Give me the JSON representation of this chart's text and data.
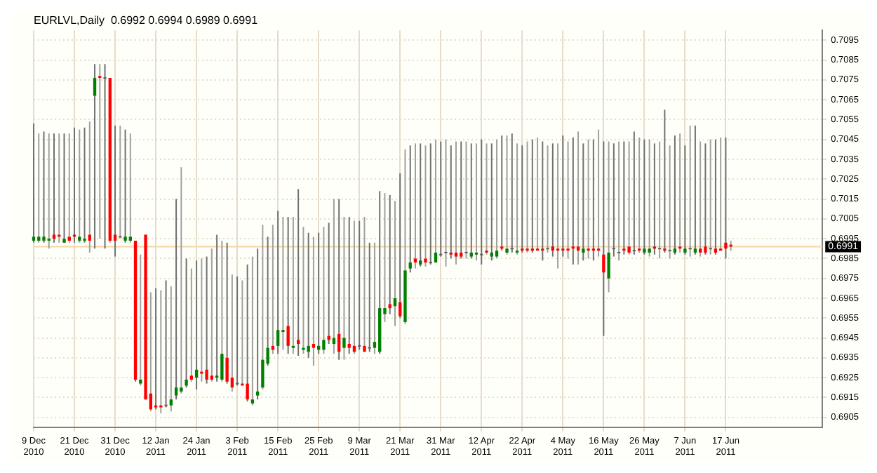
{
  "chart_data": {
    "type": "candlestick",
    "title": "EURLVL,Daily  0.6992 0.6994 0.6989 0.6991",
    "categories": [
      "9 Dec 2010",
      null,
      null,
      null,
      null,
      null,
      null,
      null,
      "21 Dec 2010",
      null,
      null,
      null,
      null,
      null,
      null,
      null,
      "31 Dec 2010",
      null,
      null,
      null,
      null,
      null,
      null,
      null,
      "12 Jan 2011",
      null,
      null,
      null,
      null,
      null,
      null,
      null,
      "24 Jan 2011",
      null,
      null,
      null,
      null,
      null,
      null,
      null,
      "3 Feb 2011",
      null,
      null,
      null,
      null,
      null,
      null,
      null,
      "15 Feb 2011",
      null,
      null,
      null,
      null,
      null,
      null,
      null,
      "25 Feb 2011",
      null,
      null,
      null,
      null,
      null,
      null,
      null,
      "9 Mar 2011",
      null,
      null,
      null,
      null,
      null,
      null,
      null,
      "21 Mar 2011",
      null,
      null,
      null,
      null,
      null,
      null,
      null,
      "31 Mar 2011",
      null,
      null,
      null,
      null,
      null,
      null,
      null,
      "12 Apr 2011",
      null,
      null,
      null,
      null,
      null,
      null,
      null,
      "22 Apr 2011",
      null,
      null,
      null,
      null,
      null,
      null,
      null,
      "4 May 2011",
      null,
      null,
      null,
      null,
      null,
      null,
      null,
      "16 May 2011",
      null,
      null,
      null,
      null,
      null,
      null,
      null,
      "26 May 2011",
      null,
      null,
      null,
      null,
      null,
      null,
      null,
      "7 Jun 2011",
      null,
      null,
      null,
      null,
      null,
      null,
      null,
      "17 Jun 2011",
      null,
      null,
      null,
      null,
      null,
      null,
      null,
      null,
      null,
      null,
      null,
      null,
      null,
      null,
      null,
      null,
      null,
      null,
      null
    ],
    "ohlc": [
      [
        0.6994,
        0.7053,
        0.6993,
        0.6996
      ],
      [
        0.6994,
        0.7048,
        0.6993,
        0.6996
      ],
      [
        0.6994,
        0.7049,
        0.6993,
        0.6996
      ],
      [
        0.6994,
        0.7048,
        0.699,
        0.6995
      ],
      [
        0.6997,
        0.7048,
        0.6993,
        0.6995
      ],
      [
        0.6997,
        0.7048,
        0.6993,
        0.6996
      ],
      [
        0.6993,
        0.7048,
        0.6993,
        0.6995
      ],
      [
        0.6996,
        0.7048,
        0.6993,
        0.6994
      ],
      [
        0.6997,
        0.7051,
        0.6993,
        0.6996
      ],
      [
        0.6994,
        0.705,
        0.6993,
        0.6996
      ],
      [
        0.6994,
        0.7051,
        0.6993,
        0.6995
      ],
      [
        0.6997,
        0.7054,
        0.6988,
        0.6994
      ],
      [
        0.7067,
        0.7083,
        0.699,
        0.7076
      ],
      [
        0.7077,
        0.7083,
        0.6995,
        0.7076
      ],
      [
        0.7076,
        0.7083,
        0.699,
        0.7076
      ],
      [
        0.7076,
        0.7076,
        0.6993,
        0.6994
      ],
      [
        0.6997,
        0.7052,
        0.6986,
        0.6994
      ],
      [
        0.6996,
        0.7052,
        0.6995,
        0.6996
      ],
      [
        0.6994,
        0.705,
        0.6993,
        0.6996
      ],
      [
        0.6994,
        0.7048,
        0.6993,
        0.6996
      ],
      [
        0.6994,
        0.6994,
        0.6923,
        0.6924
      ],
      [
        0.6922,
        0.6987,
        0.6921,
        0.6924
      ],
      [
        0.6997,
        0.6997,
        0.6914,
        0.6914
      ],
      [
        0.6917,
        0.6968,
        0.6908,
        0.6909
      ],
      [
        0.6911,
        0.697,
        0.6909,
        0.691
      ],
      [
        0.6911,
        0.6969,
        0.6907,
        0.691
      ],
      [
        0.6911,
        0.6974,
        0.691,
        0.6911
      ],
      [
        0.6911,
        0.6971,
        0.6908,
        0.6914
      ],
      [
        0.6916,
        0.7015,
        0.6914,
        0.692
      ],
      [
        0.6918,
        0.7031,
        0.6917,
        0.692
      ],
      [
        0.6921,
        0.6985,
        0.692,
        0.6924
      ],
      [
        0.6926,
        0.698,
        0.6923,
        0.6924
      ],
      [
        0.6925,
        0.6984,
        0.6919,
        0.6929
      ],
      [
        0.6928,
        0.6985,
        0.6923,
        0.6927
      ],
      [
        0.6929,
        0.6986,
        0.6922,
        0.6924
      ],
      [
        0.6926,
        0.699,
        0.6923,
        0.6924
      ],
      [
        0.6925,
        0.6997,
        0.6923,
        0.6926
      ],
      [
        0.6924,
        0.6994,
        0.6923,
        0.6937
      ],
      [
        0.6935,
        0.6993,
        0.6922,
        0.6923
      ],
      [
        0.6925,
        0.6977,
        0.6918,
        0.692
      ],
      [
        0.6922,
        0.6976,
        0.6921,
        0.6922
      ],
      [
        0.6922,
        0.6974,
        0.6921,
        0.6921
      ],
      [
        0.6922,
        0.6982,
        0.6913,
        0.6914
      ],
      [
        0.6912,
        0.6986,
        0.6911,
        0.6914
      ],
      [
        0.6916,
        0.699,
        0.6914,
        0.6918
      ],
      [
        0.692,
        0.7002,
        0.6919,
        0.6934
      ],
      [
        0.6932,
        0.6996,
        0.6931,
        0.694
      ],
      [
        0.6941,
        0.7002,
        0.6937,
        0.6939
      ],
      [
        0.6941,
        0.7009,
        0.6937,
        0.6949
      ],
      [
        0.6948,
        0.7006,
        0.6939,
        0.6949
      ],
      [
        0.6951,
        0.7006,
        0.6937,
        0.6941
      ],
      [
        0.694,
        0.7006,
        0.6937,
        0.6941
      ],
      [
        0.6944,
        0.702,
        0.6936,
        0.6942
      ],
      [
        0.6939,
        0.7001,
        0.6937,
        0.694
      ],
      [
        0.6938,
        0.6998,
        0.6935,
        0.6941
      ],
      [
        0.6942,
        0.6996,
        0.6931,
        0.694
      ],
      [
        0.6939,
        0.6998,
        0.6937,
        0.6941
      ],
      [
        0.6939,
        0.7001,
        0.6937,
        0.6944
      ],
      [
        0.6946,
        0.7003,
        0.6942,
        0.6944
      ],
      [
        0.6942,
        0.7015,
        0.6937,
        0.6945
      ],
      [
        0.6947,
        0.7015,
        0.6934,
        0.6938
      ],
      [
        0.694,
        0.7006,
        0.6934,
        0.6945
      ],
      [
        0.6942,
        0.7006,
        0.6937,
        0.694
      ],
      [
        0.6941,
        0.7004,
        0.6937,
        0.6938
      ],
      [
        0.6941,
        0.7004,
        0.6939,
        0.6941
      ],
      [
        0.6941,
        0.7006,
        0.6938,
        0.6938
      ],
      [
        0.694,
        0.6993,
        0.6938,
        0.694
      ],
      [
        0.694,
        0.6993,
        0.6937,
        0.6943
      ],
      [
        0.6938,
        0.7019,
        0.6937,
        0.696
      ],
      [
        0.6957,
        0.7018,
        0.6953,
        0.696
      ],
      [
        0.6962,
        0.7017,
        0.6957,
        0.696
      ],
      [
        0.6961,
        0.7014,
        0.6951,
        0.6965
      ],
      [
        0.6963,
        0.7028,
        0.6955,
        0.6956
      ],
      [
        0.6953,
        0.704,
        0.6952,
        0.6979
      ],
      [
        0.698,
        0.7042,
        0.6978,
        0.6983
      ],
      [
        0.6985,
        0.7043,
        0.698,
        0.6983
      ],
      [
        0.6982,
        0.7043,
        0.6981,
        0.6984
      ],
      [
        0.6985,
        0.7042,
        0.6981,
        0.6983
      ],
      [
        0.6983,
        0.7043,
        0.6982,
        0.6983
      ],
      [
        0.6983,
        0.7045,
        0.6983,
        0.6988
      ],
      [
        0.6987,
        0.7044,
        0.6986,
        0.6987
      ],
      [
        0.6988,
        0.7045,
        0.6981,
        0.6988
      ],
      [
        0.6988,
        0.7042,
        0.6985,
        0.6987
      ],
      [
        0.6988,
        0.7044,
        0.6982,
        0.6986
      ],
      [
        0.6988,
        0.7044,
        0.6985,
        0.6986
      ],
      [
        0.6988,
        0.7044,
        0.6985,
        0.6988
      ],
      [
        0.6986,
        0.7043,
        0.6985,
        0.6988
      ],
      [
        0.6987,
        0.7043,
        0.6984,
        0.6988
      ],
      [
        0.6987,
        0.7045,
        0.6982,
        0.6987
      ],
      [
        0.6989,
        0.7043,
        0.6987,
        0.6988
      ],
      [
        0.6986,
        0.7043,
        0.6984,
        0.6988
      ],
      [
        0.6986,
        0.7045,
        0.6985,
        0.6989
      ],
      [
        0.6991,
        0.7047,
        0.6989,
        0.699
      ],
      [
        0.6988,
        0.7047,
        0.6987,
        0.699
      ],
      [
        0.699,
        0.7048,
        0.6988,
        0.699
      ],
      [
        0.6988,
        0.7043,
        0.6987,
        0.6989
      ],
      [
        0.699,
        0.7042,
        0.6988,
        0.6989
      ],
      [
        0.699,
        0.7044,
        0.6988,
        0.6989
      ],
      [
        0.699,
        0.7045,
        0.6988,
        0.6989
      ],
      [
        0.699,
        0.7046,
        0.6989,
        0.6989
      ],
      [
        0.699,
        0.7044,
        0.6984,
        0.6989
      ],
      [
        0.699,
        0.7042,
        0.6988,
        0.699
      ],
      [
        0.6991,
        0.7043,
        0.6986,
        0.6989
      ],
      [
        0.699,
        0.7043,
        0.698,
        0.6989
      ],
      [
        0.699,
        0.7047,
        0.6986,
        0.6989
      ],
      [
        0.699,
        0.7044,
        0.6985,
        0.6989
      ],
      [
        0.6991,
        0.7046,
        0.6982,
        0.699
      ],
      [
        0.6991,
        0.7049,
        0.6982,
        0.6989
      ],
      [
        0.6988,
        0.7043,
        0.6984,
        0.699
      ],
      [
        0.699,
        0.7045,
        0.6985,
        0.6989
      ],
      [
        0.699,
        0.7045,
        0.6984,
        0.6989
      ],
      [
        0.699,
        0.705,
        0.6986,
        0.6989
      ],
      [
        0.6987,
        0.7044,
        0.6946,
        0.6978
      ],
      [
        0.6975,
        0.7044,
        0.6968,
        0.6988
      ],
      [
        0.699,
        0.7043,
        0.6986,
        0.699
      ],
      [
        0.6988,
        0.7044,
        0.6984,
        0.6988
      ],
      [
        0.699,
        0.7044,
        0.6987,
        0.6989
      ],
      [
        0.6991,
        0.7044,
        0.6987,
        0.6988
      ],
      [
        0.6989,
        0.7049,
        0.6987,
        0.6989
      ],
      [
        0.699,
        0.7046,
        0.6988,
        0.6989
      ],
      [
        0.6988,
        0.7045,
        0.6987,
        0.699
      ],
      [
        0.6988,
        0.7045,
        0.6986,
        0.699
      ],
      [
        0.6991,
        0.7043,
        0.6987,
        0.699
      ],
      [
        0.699,
        0.7044,
        0.6985,
        0.699
      ],
      [
        0.699,
        0.706,
        0.6988,
        0.6989
      ],
      [
        0.6989,
        0.7042,
        0.6985,
        0.6989
      ],
      [
        0.6988,
        0.7047,
        0.6987,
        0.699
      ],
      [
        0.6991,
        0.7048,
        0.6988,
        0.699
      ],
      [
        0.6988,
        0.7042,
        0.6987,
        0.699
      ],
      [
        0.699,
        0.7052,
        0.6986,
        0.699
      ],
      [
        0.6988,
        0.7052,
        0.6987,
        0.699
      ],
      [
        0.699,
        0.7044,
        0.6986,
        0.6988
      ],
      [
        0.6991,
        0.7043,
        0.6987,
        0.6988
      ],
      [
        0.699,
        0.7045,
        0.6987,
        0.699
      ],
      [
        0.699,
        0.7045,
        0.6987,
        0.6988
      ],
      [
        0.699,
        0.7046,
        0.6989,
        0.6989
      ],
      [
        0.6993,
        0.7046,
        0.6985,
        0.699
      ],
      [
        0.6992,
        0.6994,
        0.6989,
        0.6991
      ],
      null,
      null,
      null,
      null,
      null,
      null,
      null,
      null,
      null,
      null,
      null,
      null,
      null,
      null,
      null,
      null,
      null,
      null
    ],
    "ylim": [
      0.69,
      0.71
    ],
    "yticks": [
      0.6905,
      0.6915,
      0.6925,
      0.6935,
      0.6945,
      0.6955,
      0.6965,
      0.6975,
      0.6985,
      0.6995,
      0.7005,
      0.7015,
      0.7025,
      0.7035,
      0.7045,
      0.7055,
      0.7065,
      0.7075,
      0.7085,
      0.7095
    ],
    "grid": true,
    "ref_lines": [
      {
        "axis": "y",
        "value": 0.6991,
        "label": "0.6991",
        "color": "#f5d5a8"
      }
    ]
  }
}
